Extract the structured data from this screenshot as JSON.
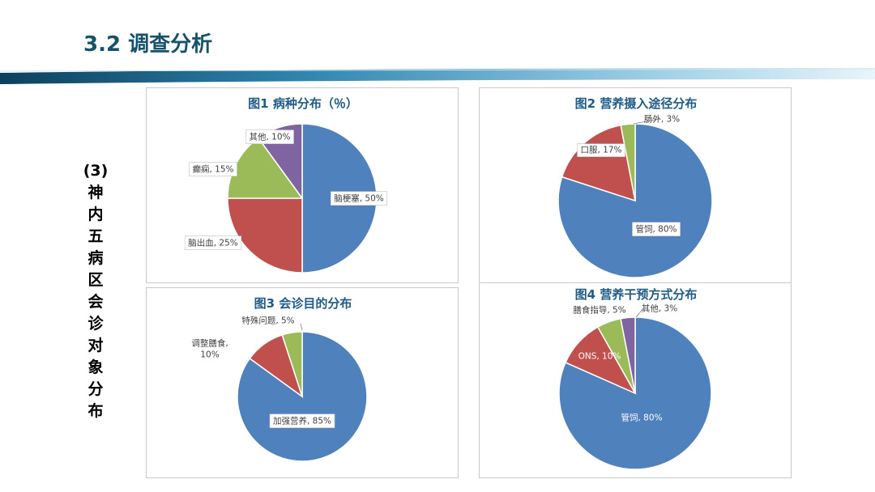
{
  "slide": {
    "title": "3.2 调查分析",
    "side_label": "(3) 神内五病区会诊对象分布"
  },
  "colors": {
    "blue": "#4f81bd",
    "red": "#c0504d",
    "green": "#9bbb59",
    "purple": "#8064a2",
    "title": "#17526b"
  },
  "chart_data": [
    {
      "type": "pie",
      "title": "图1 病种分布（％）",
      "slices": [
        {
          "name": "脑梗塞",
          "value": 50,
          "label": "脑梗塞, 50%"
        },
        {
          "name": "脑出血",
          "value": 25,
          "label": "脑出血, 25%"
        },
        {
          "name": "癫痫",
          "value": 15,
          "label": "癫痫, 15%"
        },
        {
          "name": "其他",
          "value": 10,
          "label": "其他, 10%"
        }
      ]
    },
    {
      "type": "pie",
      "title": "图2 营养摄入途径分布",
      "slices": [
        {
          "name": "管饲",
          "value": 80,
          "label": "管饲, 80%"
        },
        {
          "name": "口服",
          "value": 17,
          "label": "口服, 17%"
        },
        {
          "name": "肠外",
          "value": 3,
          "label": "肠外, 3%"
        }
      ]
    },
    {
      "type": "pie",
      "title": "图3  会诊目的分布",
      "slices": [
        {
          "name": "加强营养",
          "value": 85,
          "label": "加强营养, 85%"
        },
        {
          "name": "调整膳食",
          "value": 10,
          "label_lines": [
            "调整膳食,",
            "10%"
          ]
        },
        {
          "name": "特殊问题",
          "value": 5,
          "label": "特殊问题, 5%"
        }
      ]
    },
    {
      "type": "pie",
      "title": "图4 营养干预方式分布",
      "slices": [
        {
          "name": "管饲",
          "value": 80,
          "label": "管饲, 80%"
        },
        {
          "name": "ONS",
          "value": 10,
          "label": "ONS, 10%"
        },
        {
          "name": "膳食指导",
          "value": 5,
          "label": "膳食指导, 5%"
        },
        {
          "name": "其他",
          "value": 3,
          "label": "其他, 3%"
        }
      ]
    }
  ]
}
